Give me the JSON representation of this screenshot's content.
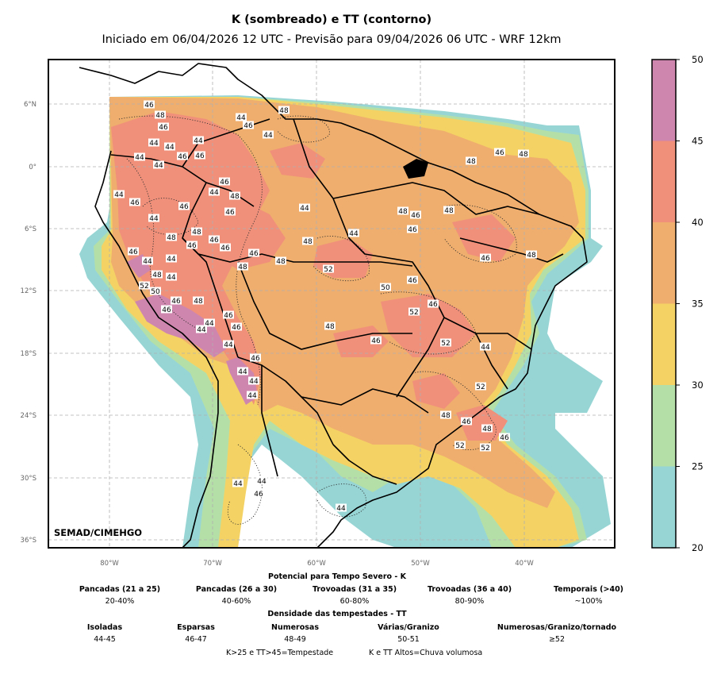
{
  "title": "K (sombreado) e TT (contorno)",
  "subtitle": "Iniciado em 06/04/2026 12 UTC - Previsão para 09/04/2026 06 UTC - WRF 12km",
  "credit": "SEMAD/CIMEHGO",
  "lat_ticks": [
    "6°N",
    "0°",
    "6°S",
    "12°S",
    "18°S",
    "24°S",
    "30°S",
    "36°S"
  ],
  "lon_ticks": [
    "80°W",
    "70°W",
    "60°W",
    "50°W",
    "40°W"
  ],
  "colorbar": {
    "ticks": [
      "20",
      "25",
      "30",
      "35",
      "40",
      "45",
      "50"
    ],
    "bands": [
      {
        "range": "20-25",
        "color": "#97d5d5"
      },
      {
        "range": "25-30",
        "color": "#b4e0a8"
      },
      {
        "range": "30-35",
        "color": "#f4d364"
      },
      {
        "range": "35-40",
        "color": "#efae6d"
      },
      {
        "range": "40-45",
        "color": "#f0907a"
      },
      {
        "range": "45-50",
        "color": "#cf86ae"
      }
    ]
  },
  "tt_labels": [
    "46",
    "48",
    "46",
    "44",
    "44",
    "44",
    "46",
    "46",
    "44",
    "44",
    "44",
    "46",
    "44",
    "46",
    "44",
    "46",
    "48",
    "46",
    "48",
    "48",
    "44",
    "44",
    "48",
    "46",
    "44",
    "44",
    "48",
    "48",
    "46",
    "46",
    "46",
    "46",
    "48",
    "46",
    "44",
    "44",
    "48",
    "44",
    "48",
    "46",
    "46",
    "48",
    "46",
    "48",
    "48",
    "46",
    "48",
    "52",
    "50",
    "46",
    "46",
    "52",
    "48",
    "46",
    "52",
    "44",
    "52",
    "48",
    "46",
    "48",
    "46",
    "52",
    "52",
    "52",
    "50",
    "46",
    "46",
    "48",
    "44",
    "44",
    "46",
    "46",
    "44",
    "46",
    "44",
    "44",
    "44",
    "44",
    "44",
    "46",
    "44"
  ],
  "legend": {
    "k_title": "Potencial para Tempo Severo - K",
    "k_items": [
      {
        "label": "Pancadas (21 a 25)",
        "value": "20-40%"
      },
      {
        "label": "Pancadas (26 a 30)",
        "value": "40-60%"
      },
      {
        "label": "Trovoadas (31 a 35)",
        "value": "60-80%"
      },
      {
        "label": "Trovoadas (36 a 40)",
        "value": "80-90%"
      },
      {
        "label": "Temporais (>40)",
        "value": "~100%"
      }
    ],
    "tt_title": "Densidade das tempestades - TT",
    "tt_items": [
      {
        "label": "Isoladas",
        "value": "44-45"
      },
      {
        "label": "Esparsas",
        "value": "46-47"
      },
      {
        "label": "Numerosas",
        "value": "48-49"
      },
      {
        "label": "Várias/Granizo",
        "value": "50-51"
      },
      {
        "label": "Numerosas/Granizo/tornado",
        "value": "≥52"
      }
    ],
    "note1": "K>25 e TT>45=Tempestade",
    "note2": "K e TT Altos=Chuva volumosa"
  }
}
